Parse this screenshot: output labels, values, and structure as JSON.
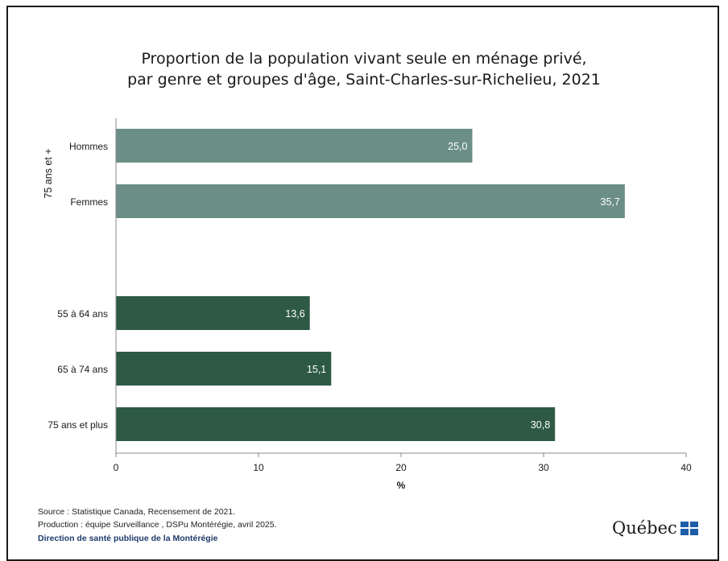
{
  "chart_data": {
    "type": "bar",
    "orientation": "horizontal",
    "title_line1": "Proportion de la population vivant seule en ménage privé,",
    "title_line2": "par genre et groupes d'âge, Saint-Charles-sur-Richelieu, 2021",
    "xlabel": "%",
    "xlim": [
      0,
      40
    ],
    "xticks": [
      "0",
      "10",
      "20",
      "30",
      "40"
    ],
    "group_label": "75 ans et +",
    "bars": [
      {
        "label": "Hommes",
        "value": 25.0,
        "value_label": "25,0",
        "color": "#6b8e87"
      },
      {
        "label": "Femmes",
        "value": 35.7,
        "value_label": "35,7",
        "color": "#6b8e87"
      },
      {
        "label": "55 à 64 ans",
        "value": 13.6,
        "value_label": "13,6",
        "color": "#2e5a45"
      },
      {
        "label": "65 à 74 ans",
        "value": 15.1,
        "value_label": "15,1",
        "color": "#2e5a45"
      },
      {
        "label": "75 ans et plus",
        "value": 30.8,
        "value_label": "30,8",
        "color": "#2e5a45"
      }
    ],
    "grid": false
  },
  "footer": {
    "source": "Source : Statistique Canada, Recensement de 2021.",
    "production": "Production : équipe Surveillance , DSPu Montérégie, avril 2025.",
    "direction": "Direction de santé publique de la Montérégie"
  },
  "logo": {
    "text": "Québec",
    "icon": "quebec-flag-icon"
  }
}
